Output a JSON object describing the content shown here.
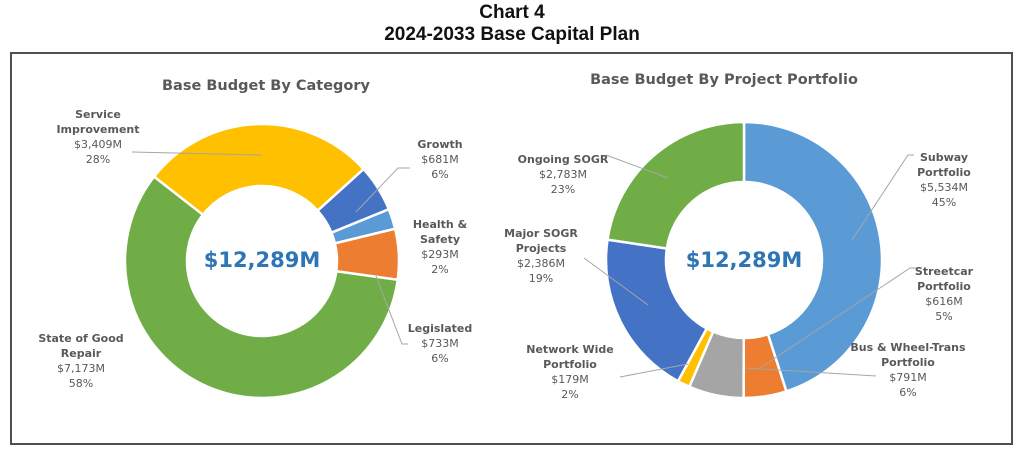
{
  "figure": {
    "title_line1": "Chart 4",
    "title_line2": "2024-2033 Base Capital Plan"
  },
  "chart_data": [
    {
      "type": "pie",
      "subtype": "donut",
      "title": "Base Budget By Category",
      "center_label": "$12,289M",
      "total": 12289,
      "unit": "$M",
      "start_angle_deg": -52,
      "slices": [
        {
          "name": "Service Improvement",
          "label_lines": [
            "Service",
            "Improvement"
          ],
          "value": 3409,
          "value_label": "$3,409M",
          "percent_label": "28%",
          "color": "#FFC000"
        },
        {
          "name": "Growth",
          "label_lines": [
            "Growth"
          ],
          "value": 681,
          "value_label": "$681M",
          "percent_label": "6%",
          "color": "#4472C4"
        },
        {
          "name": "Health & Safety",
          "label_lines": [
            "Health &",
            "Safety"
          ],
          "value": 293,
          "value_label": "$293M",
          "percent_label": "2%",
          "color": "#5B9BD5"
        },
        {
          "name": "Legislated",
          "label_lines": [
            "Legislated"
          ],
          "value": 733,
          "value_label": "$733M",
          "percent_label": "6%",
          "color": "#ED7D31"
        },
        {
          "name": "State of Good Repair",
          "label_lines": [
            "State of Good",
            "Repair"
          ],
          "value": 7173,
          "value_label": "$7,173M",
          "percent_label": "58%",
          "color": "#70AD47"
        }
      ]
    },
    {
      "type": "pie",
      "subtype": "donut",
      "title": "Base Budget By Project Portfolio",
      "center_label": "$12,289M",
      "total": 12289,
      "unit": "$M",
      "start_angle_deg": 0,
      "slices": [
        {
          "name": "Subway Portfolio",
          "label_lines": [
            "Subway",
            "Portfolio"
          ],
          "value": 5534,
          "value_label": "$5,534M",
          "percent_label": "45%",
          "color": "#5B9BD5"
        },
        {
          "name": "Streetcar Portfolio",
          "label_lines": [
            "Streetcar",
            "Portfolio"
          ],
          "value": 616,
          "value_label": "$616M",
          "percent_label": "5%",
          "color": "#ED7D31"
        },
        {
          "name": "Bus & Wheel-Trans Portfolio",
          "label_lines": [
            "Bus & Wheel-Trans",
            "Portfolio"
          ],
          "value": 791,
          "value_label": "$791M",
          "percent_label": "6%",
          "color": "#A5A5A5"
        },
        {
          "name": "Network Wide Portfolio",
          "label_lines": [
            "Network Wide",
            "Portfolio"
          ],
          "value": 179,
          "value_label": "$179M",
          "percent_label": "2%",
          "color": "#FFC000"
        },
        {
          "name": "Major SOGR Projects",
          "label_lines": [
            "Major SOGR",
            "Projects"
          ],
          "value": 2386,
          "value_label": "$2,386M",
          "percent_label": "19%",
          "color": "#4472C4"
        },
        {
          "name": "Ongoing SOGR",
          "label_lines": [
            "Ongoing SOGR"
          ],
          "value": 2783,
          "value_label": "$2,783M",
          "percent_label": "23%",
          "color": "#70AD47"
        }
      ]
    }
  ]
}
